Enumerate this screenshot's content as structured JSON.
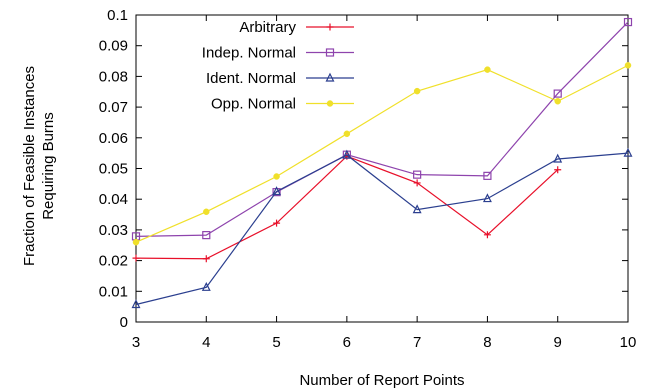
{
  "chart_data": {
    "type": "line",
    "title": "",
    "xlabel": "Number of Report Points",
    "ylabel": [
      "Fraction of Feasible Instances",
      "Requiring Burns"
    ],
    "x": [
      3,
      4,
      5,
      6,
      7,
      8,
      9,
      10
    ],
    "xlim": [
      3,
      10
    ],
    "ylim": [
      0,
      0.1
    ],
    "xticks": [
      "3",
      "4",
      "5",
      "6",
      "7",
      "8",
      "9",
      "10"
    ],
    "yticks": [
      "0",
      "0.01",
      "0.02",
      "0.03",
      "0.04",
      "0.05",
      "0.06",
      "0.07",
      "0.08",
      "0.09",
      "0.1"
    ],
    "grid": false,
    "legend_position": "top-left",
    "series": [
      {
        "name": "Arbitrary",
        "color": "#e8102a",
        "marker": "plus",
        "values": [
          0.0208,
          0.0206,
          0.0322,
          0.054,
          0.0453,
          0.0284,
          0.0496,
          null
        ]
      },
      {
        "name": "Indep. Normal",
        "color": "#8e44ad",
        "marker": "square",
        "values": [
          0.0279,
          0.0283,
          0.0423,
          0.0545,
          0.048,
          0.0476,
          0.0744,
          0.0977
        ]
      },
      {
        "name": "Ident. Normal",
        "color": "#2b3f8f",
        "marker": "triangle",
        "values": [
          0.0057,
          0.0113,
          0.0425,
          0.0544,
          0.0366,
          0.0402,
          0.0531,
          0.055
        ]
      },
      {
        "name": "Opp. Normal",
        "color": "#f0e02a",
        "marker": "circle",
        "values": [
          0.026,
          0.0359,
          0.0474,
          0.0613,
          0.0752,
          0.0822,
          0.0719,
          0.0836
        ]
      }
    ]
  }
}
